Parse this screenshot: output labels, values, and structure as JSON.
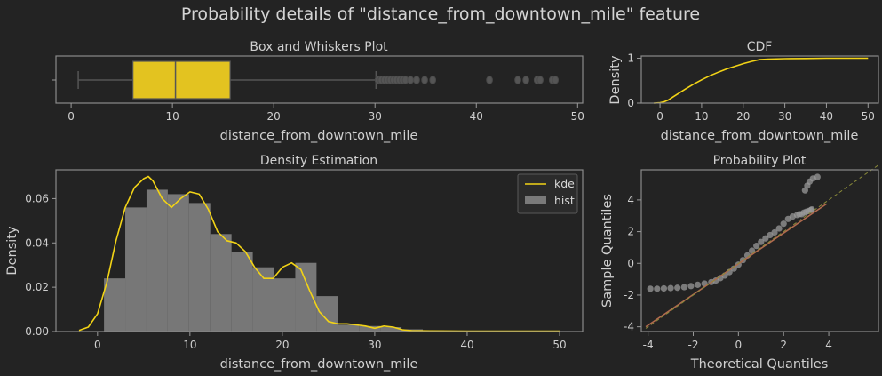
{
  "figure": {
    "suptitle": "Probability details of \"distance_from_downtown_mile\" feature",
    "colors": {
      "background": "#232323",
      "yellow": "#f2d316",
      "box_fill": "#e3c320",
      "hist": "#777777",
      "outlier": "#555555",
      "points": "#9a9a9a",
      "line": "#b06a4e",
      "ref_line": "#8a8a3a"
    }
  },
  "chart_data": [
    {
      "id": "box",
      "type": "box",
      "title": "Box and Whiskers Plot",
      "xlabel": "distance_from_downtown_mile",
      "ylabel": "",
      "xlim": [
        -1.5,
        50.5
      ],
      "xticks": [
        0,
        10,
        20,
        30,
        40,
        50
      ],
      "stats": {
        "whisker_low": 0.7,
        "q1": 6.1,
        "median": 10.3,
        "q3": 15.7,
        "whisker_high": 30.1
      },
      "outliers": [
        30.3,
        30.6,
        30.9,
        31.2,
        31.5,
        31.8,
        32.1,
        32.4,
        32.7,
        33.0,
        33.5,
        34.1,
        34.9,
        35.7,
        41.3,
        44.1,
        44.9,
        46.0,
        46.3,
        47.5,
        47.8
      ]
    },
    {
      "id": "cdf",
      "type": "line",
      "title": "CDF",
      "xlabel": "distance_from_downtown_mile",
      "ylabel": "Density",
      "xlim": [
        -4.5,
        52.5
      ],
      "ylim": [
        0,
        1.05
      ],
      "xticks": [
        0,
        10,
        20,
        30,
        40,
        50
      ],
      "yticks": [
        0,
        1
      ],
      "x": [
        -1.5,
        0,
        1,
        2,
        3,
        4,
        5,
        6,
        8,
        10,
        12,
        14,
        16,
        18,
        20,
        22,
        24,
        26,
        30,
        35,
        40,
        50
      ],
      "y": [
        0,
        0.01,
        0.03,
        0.07,
        0.13,
        0.19,
        0.25,
        0.31,
        0.42,
        0.52,
        0.61,
        0.69,
        0.76,
        0.82,
        0.88,
        0.93,
        0.97,
        0.98,
        0.99,
        0.995,
        1.0,
        1.0
      ]
    },
    {
      "id": "density",
      "type": "histogram+kde",
      "title": "Density Estimation",
      "xlabel": "distance_from_downtown_mile",
      "ylabel": "Density",
      "xlim": [
        -4.5,
        52.5
      ],
      "ylim": [
        0,
        0.073
      ],
      "xticks": [
        0,
        10,
        20,
        30,
        40,
        50
      ],
      "yticks": [
        0.0,
        0.02,
        0.04,
        0.06
      ],
      "ytick_labels": [
        "0.00",
        "0.02",
        "0.04",
        "0.06"
      ],
      "legend": {
        "position": "top-right",
        "entries": [
          "kde",
          "hist"
        ]
      },
      "hist_edges": [
        0.7,
        3.0,
        5.3,
        7.6,
        9.9,
        12.2,
        14.5,
        16.8,
        19.1,
        21.4,
        23.7,
        26.0,
        28.3,
        30.6,
        32.9,
        35.2,
        37.5,
        39.8,
        42.1,
        44.4,
        46.7,
        49.0
      ],
      "hist_values": [
        0.024,
        0.056,
        0.064,
        0.062,
        0.058,
        0.044,
        0.036,
        0.029,
        0.024,
        0.031,
        0.016,
        0.003,
        0.0025,
        0.002,
        0.001,
        0.0005,
        0.0003,
        0.0003,
        0.0002,
        0.0002,
        0.0002
      ],
      "kde_x": [
        -2,
        -1,
        0,
        1,
        2,
        3,
        4,
        5,
        5.5,
        6,
        7,
        8,
        9,
        10,
        11,
        12,
        13,
        14,
        15,
        16,
        17,
        18,
        19,
        20,
        21,
        22,
        23,
        24,
        25,
        26,
        27,
        28,
        29,
        30,
        31,
        32,
        33,
        34,
        36,
        40,
        45,
        50
      ],
      "kde_y": [
        0.0005,
        0.002,
        0.008,
        0.022,
        0.041,
        0.056,
        0.065,
        0.069,
        0.07,
        0.068,
        0.06,
        0.056,
        0.06,
        0.063,
        0.062,
        0.055,
        0.045,
        0.041,
        0.04,
        0.036,
        0.029,
        0.024,
        0.024,
        0.029,
        0.031,
        0.028,
        0.018,
        0.009,
        0.0045,
        0.0035,
        0.0035,
        0.003,
        0.0025,
        0.0015,
        0.0025,
        0.002,
        0.0008,
        0.0004,
        0.0003,
        0.0002,
        0.0002,
        0.0002
      ]
    },
    {
      "id": "probplot",
      "type": "scatter",
      "title": "Probability Plot",
      "xlabel": "Theoretical Quantiles",
      "ylabel": "Sample Quantiles",
      "xlim": [
        -4.3,
        6.2
      ],
      "ylim": [
        -4.3,
        5.9
      ],
      "xticks": [
        -4,
        -2,
        0,
        2,
        4
      ],
      "yticks": [
        -4,
        -2,
        0,
        2,
        4
      ],
      "fit_line": {
        "x": [
          -4.1,
          3.9
        ],
        "y": [
          -4.0,
          3.75
        ]
      },
      "ref_line": {
        "x": [
          -4.1,
          6.2
        ],
        "y": [
          -4.1,
          6.2
        ]
      },
      "points": {
        "x": [
          -3.9,
          -3.6,
          -3.3,
          -3.0,
          -2.7,
          -2.4,
          -2.1,
          -1.8,
          -1.5,
          -1.2,
          -1.0,
          -0.8,
          -0.6,
          -0.4,
          -0.2,
          0.0,
          0.2,
          0.4,
          0.6,
          0.8,
          1.0,
          1.2,
          1.4,
          1.6,
          1.8,
          2.0,
          2.2,
          2.4,
          2.6,
          2.7,
          2.8,
          2.9,
          3.0,
          3.1,
          3.2,
          3.25,
          2.95,
          3.05,
          3.15,
          3.3,
          3.5
        ],
        "y": [
          -1.6,
          -1.6,
          -1.58,
          -1.56,
          -1.54,
          -1.5,
          -1.43,
          -1.35,
          -1.27,
          -1.18,
          -1.08,
          -0.93,
          -0.77,
          -0.55,
          -0.33,
          -0.08,
          0.2,
          0.5,
          0.8,
          1.1,
          1.35,
          1.57,
          1.78,
          1.95,
          2.2,
          2.5,
          2.8,
          2.95,
          3.05,
          3.1,
          3.1,
          3.2,
          3.25,
          3.3,
          3.35,
          3.4,
          4.6,
          4.9,
          5.15,
          5.35,
          5.45
        ]
      }
    }
  ]
}
